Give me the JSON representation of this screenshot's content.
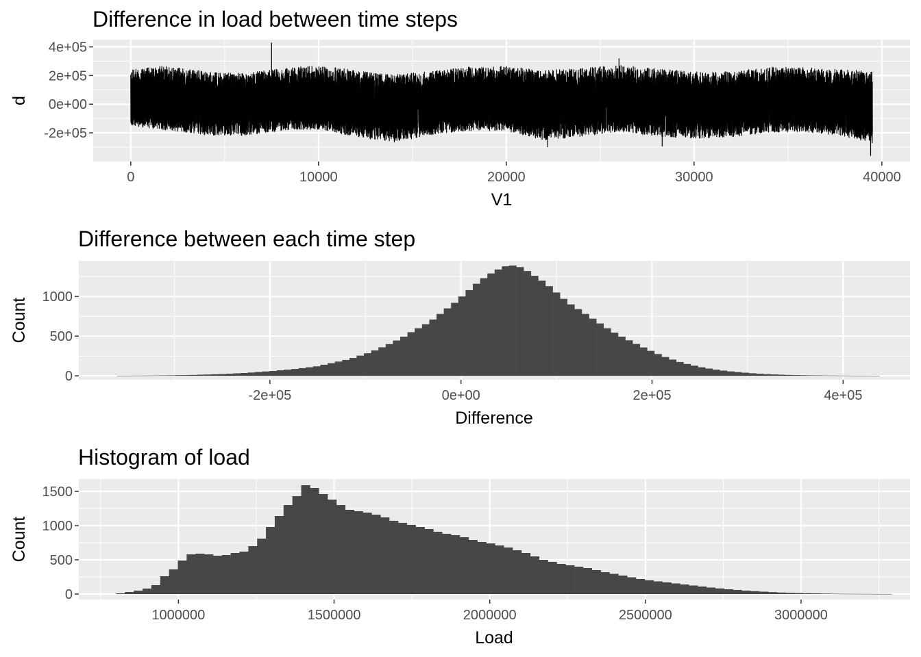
{
  "colors": {
    "panel_background": "#ebebeb",
    "grid": "#ffffff",
    "line": "#000000",
    "bars": "#474747",
    "tick_text": "#4d4d4d",
    "title_text": "#000000"
  },
  "chart_data": [
    {
      "type": "line",
      "title": "Difference in load between time steps",
      "xlabel": "V1",
      "ylabel": "d",
      "xlim": [
        -2000,
        41500
      ],
      "ylim": [
        -400000,
        450000
      ],
      "x_ticks": [
        0,
        10000,
        20000,
        30000,
        40000
      ],
      "x_tick_labels": [
        "0",
        "10000",
        "20000",
        "30000",
        "40000"
      ],
      "y_ticks": [
        -200000,
        0,
        200000,
        400000
      ],
      "y_tick_labels": [
        "-2e+05",
        "0e+00",
        "2e+05",
        "4e+05"
      ],
      "n_points": 39500,
      "envelope": {
        "x": [
          0,
          2000,
          4000,
          6000,
          8000,
          10000,
          12000,
          14000,
          16000,
          18000,
          20000,
          22000,
          24000,
          26000,
          28000,
          30000,
          32000,
          34000,
          36000,
          38000,
          39500
        ],
        "upper": [
          240000,
          270000,
          225000,
          215000,
          250000,
          270000,
          235000,
          205000,
          230000,
          260000,
          265000,
          235000,
          250000,
          275000,
          250000,
          225000,
          230000,
          260000,
          255000,
          240000,
          230000
        ],
        "lower": [
          -150000,
          -185000,
          -215000,
          -220000,
          -185000,
          -175000,
          -230000,
          -265000,
          -215000,
          -185000,
          -185000,
          -250000,
          -225000,
          -190000,
          -225000,
          -240000,
          -230000,
          -195000,
          -195000,
          -225000,
          -270000
        ]
      },
      "spikes": [
        {
          "x": 7500,
          "y": 430000
        },
        {
          "x": 26000,
          "y": 320000
        },
        {
          "x": 22200,
          "y": -300000
        },
        {
          "x": 28300,
          "y": -295000
        },
        {
          "x": 39400,
          "y": -360000
        }
      ],
      "grid": true
    },
    {
      "type": "bar",
      "title": "Difference between each time step",
      "xlabel": "Difference",
      "ylabel": "Count",
      "xlim": [
        -400000,
        470000
      ],
      "ylim": [
        -50,
        1450
      ],
      "x_ticks": [
        -200000,
        0,
        200000,
        400000
      ],
      "x_tick_labels": [
        "-2e+05",
        "0e+00",
        "2e+05",
        "4e+05"
      ],
      "y_ticks": [
        0,
        500,
        1000
      ],
      "y_tick_labels": [
        "0",
        "500",
        "1000"
      ],
      "bin_start": -360000,
      "bin_width": 7600,
      "counts": [
        2,
        2,
        3,
        3,
        4,
        5,
        6,
        7,
        9,
        10,
        12,
        15,
        17,
        20,
        23,
        27,
        32,
        36,
        42,
        48,
        55,
        62,
        70,
        78,
        87,
        97,
        108,
        120,
        140,
        160,
        180,
        200,
        225,
        255,
        285,
        320,
        360,
        400,
        445,
        495,
        550,
        600,
        650,
        710,
        780,
        850,
        920,
        1000,
        1080,
        1160,
        1230,
        1290,
        1340,
        1380,
        1390,
        1370,
        1320,
        1260,
        1200,
        1130,
        1050,
        970,
        900,
        840,
        780,
        720,
        660,
        600,
        545,
        495,
        448,
        402,
        358,
        315,
        275,
        238,
        205,
        175,
        150,
        128,
        108,
        92,
        78,
        66,
        56,
        47,
        40,
        33,
        27,
        22,
        18,
        15,
        12,
        10,
        8,
        7,
        6,
        5,
        4,
        3,
        3,
        2,
        2,
        2,
        1
      ],
      "grid": true
    },
    {
      "type": "bar",
      "title": "Histogram of load",
      "xlabel": "Load",
      "ylabel": "Count",
      "xlim": [
        680000,
        3350000
      ],
      "ylim": [
        -80,
        1680
      ],
      "x_ticks": [
        1000000,
        1500000,
        2000000,
        2500000,
        3000000
      ],
      "x_tick_labels": [
        "1000000",
        "1500000",
        "2000000",
        "2500000",
        "3000000"
      ],
      "y_ticks": [
        0,
        500,
        1000,
        1500
      ],
      "y_tick_labels": [
        "0",
        "500",
        "1000",
        "1500"
      ],
      "bin_start": 800000,
      "bin_width": 28300,
      "counts": [
        10,
        30,
        50,
        80,
        130,
        260,
        360,
        490,
        580,
        590,
        580,
        560,
        570,
        600,
        620,
        700,
        810,
        980,
        1140,
        1300,
        1430,
        1590,
        1550,
        1460,
        1380,
        1300,
        1230,
        1210,
        1190,
        1160,
        1120,
        1070,
        1040,
        1010,
        980,
        950,
        910,
        880,
        860,
        830,
        790,
        760,
        740,
        710,
        680,
        640,
        600,
        550,
        500,
        470,
        440,
        420,
        400,
        380,
        350,
        320,
        295,
        270,
        245,
        220,
        200,
        185,
        170,
        155,
        140,
        125,
        110,
        95,
        82,
        70,
        60,
        50,
        42,
        35,
        28,
        22,
        18,
        14,
        11,
        9,
        7,
        5,
        4,
        3,
        2,
        2,
        1,
        1
      ],
      "grid": true
    }
  ]
}
